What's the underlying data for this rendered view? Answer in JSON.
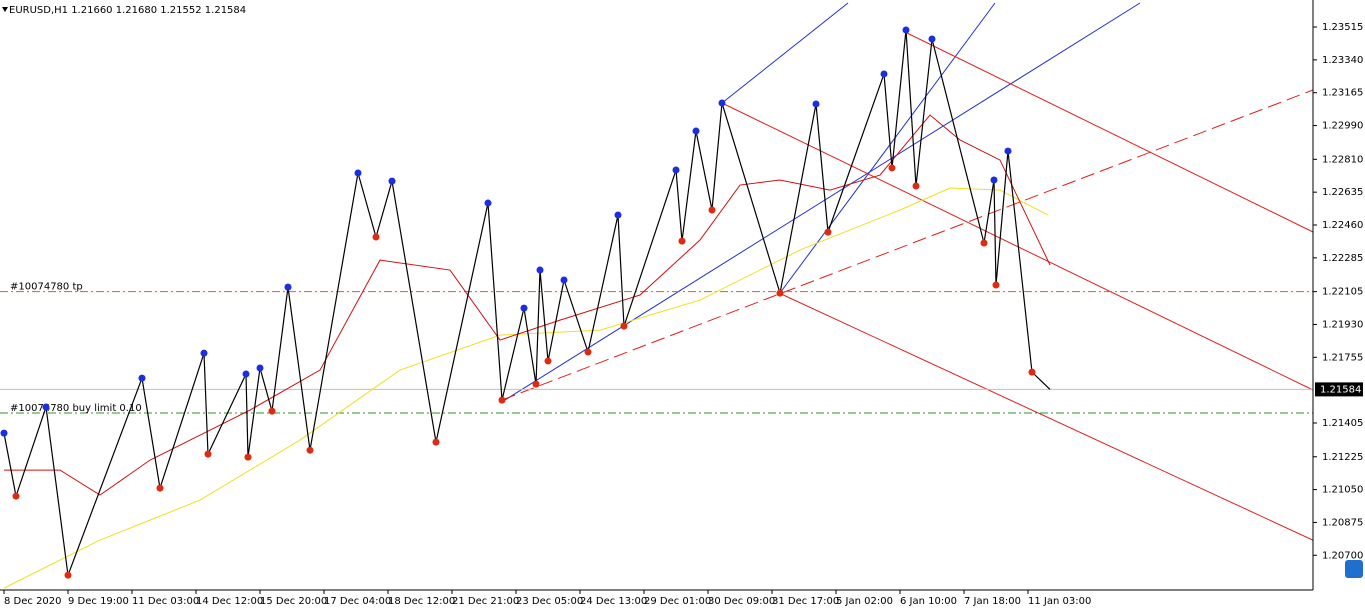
{
  "header": "EURUSD,H1  1.21660 1.21680 1.21552 1.21584",
  "chart_data": {
    "type": "line",
    "ylim": [
      1.20515,
      1.23659
    ],
    "yticks": [
      1.23515,
      {
        "value": 1.2334,
        "label": "1.23340"
      },
      1.23165,
      {
        "value": 1.2299,
        "label": "1.22990"
      },
      {
        "value": 1.2281,
        "label": "1.22810"
      },
      1.22635,
      {
        "value": 1.2246,
        "label": "1.22460"
      },
      1.22285,
      1.22105,
      {
        "value": 1.2193,
        "label": "1.21930"
      },
      1.21755,
      1.21405,
      1.21225,
      {
        "value": 1.2105,
        "label": "1.21050"
      },
      1.20875,
      {
        "value": 1.207,
        "label": "1.20700"
      }
    ],
    "categories": [
      "8 Dec 2020",
      "9 Dec 19:00",
      "11 Dec 03:00",
      "14 Dec 12:00",
      "15 Dec 20:00",
      "17 Dec 04:00",
      "18 Dec 12:00",
      "21 Dec 21:00",
      "23 Dec 05:00",
      "24 Dec 13:00",
      "29 Dec 01:00",
      "30 Dec 09:00",
      "31 Dec 17:00",
      "5 Jan 02:00",
      "6 Jan 10:00",
      "7 Jan 18:00",
      "11 Jan 03:00"
    ],
    "bars_per_label": 32,
    "bid": 1.21584,
    "orders": [
      {
        "label": "#10074780 tp",
        "price": 1.22105,
        "color": "#e8582a"
      },
      {
        "label": "#10074780 buy limit 0.10",
        "price": 1.21458,
        "color": "#2a9a2a"
      }
    ],
    "price": {
      "color": "#000000",
      "x": [
        0,
        6,
        21,
        32,
        69,
        78,
        100,
        102,
        121,
        122,
        128,
        134,
        142,
        153,
        177,
        186,
        194,
        216,
        242,
        249,
        260,
        266,
        268,
        272,
        280,
        292,
        307,
        310,
        336,
        339,
        346,
        354,
        359,
        388,
        406,
        412,
        440,
        444,
        451,
        456,
        464,
        490,
        495,
        496,
        502,
        514,
        523
      ],
      "values": [
        1.21351,
        1.21015,
        1.2149,
        1.20594,
        1.21644,
        1.21058,
        1.21777,
        1.21239,
        1.21666,
        1.21223,
        1.21698,
        1.21468,
        1.22129,
        1.2126,
        1.22737,
        1.22396,
        1.22694,
        1.21303,
        1.22577,
        1.21527,
        1.22017,
        1.21612,
        1.2222,
        1.21735,
        1.22167,
        1.21783,
        1.22513,
        1.21921,
        1.22753,
        1.22374,
        1.22961,
        1.2254,
        1.2311,
        1.22097,
        1.23105,
        1.22422,
        1.23265,
        1.22764,
        1.23499,
        1.22668,
        1.23451,
        1.22364,
        1.227,
        1.2214,
        1.22854,
        1.21676,
        1.21584
      ]
    },
    "series": [
      {
        "color": "#f0e020",
        "x": [
          0,
          48,
          98,
          148,
          198,
          248,
          298,
          348,
          398,
          448,
          473,
          498,
          522
        ],
        "values": [
          1.20525,
          1.20781,
          1.20994,
          1.21314,
          1.21687,
          1.21873,
          1.219,
          1.2206,
          1.22327,
          1.2254,
          1.22657,
          1.22646,
          1.22513
        ]
      },
      {
        "color": "#d01010",
        "x": [
          0,
          28,
          48,
          73,
          123,
          158,
          188,
          223,
          248,
          278,
          318,
          348,
          368,
          388,
          413,
          438,
          463,
          478,
          498,
          523
        ],
        "values": [
          1.21154,
          1.21154,
          1.21021,
          1.21207,
          1.21474,
          1.21687,
          1.22273,
          1.2222,
          1.21847,
          1.21953,
          1.22087,
          1.2238,
          1.22673,
          1.227,
          1.22646,
          1.22726,
          1.23046,
          1.22913,
          1.22806,
          1.22247
        ]
      }
    ]
  }
}
